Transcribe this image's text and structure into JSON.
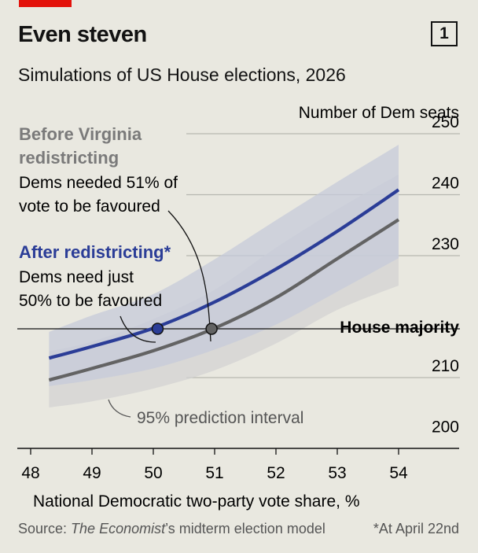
{
  "header": {
    "title": "Even steven",
    "chart_number": "1",
    "subtitle": "Simulations of US House elections, 2026"
  },
  "annotations": {
    "before_title_1": "Before Virginia",
    "before_title_2": "redistricting",
    "before_body_1": "Dems needed 51% of",
    "before_body_2": "vote to be favoured",
    "after_title": "After redistricting*",
    "after_body_1": "Dems need just",
    "after_body_2": "50% to be favoured",
    "interval_label": "95% prediction interval",
    "majority_label": "House majority"
  },
  "footer": {
    "source_prefix": "Source: ",
    "source_publication": "The Economist",
    "source_suffix": "’s midterm election model",
    "footnote": "*At April 22nd"
  },
  "colors": {
    "after_line": "#2b3d97",
    "before_line": "#636363",
    "after_band": "#c6cbda",
    "before_band": "#d3d3d3",
    "gridline": "#b7b7b1",
    "background": "#e9e8e0",
    "before_title_text": "#7a7a7a",
    "after_title_text": "#2b3d97"
  },
  "chart_data": {
    "type": "line",
    "xlabel": "National Democratic two-party vote share, %",
    "ylabel": "Number of Dem seats",
    "xlim": [
      47.8,
      55
    ],
    "ylim": [
      199,
      251
    ],
    "x_ticks": [
      48,
      49,
      50,
      51,
      52,
      53,
      54
    ],
    "y_ticks": [
      200,
      210,
      230,
      240,
      250
    ],
    "majority_line": 218,
    "series": [
      {
        "name": "After redistricting*",
        "x": [
          48.3,
          49,
          50,
          51,
          52,
          53,
          54
        ],
        "y": [
          213.2,
          215.1,
          218.1,
          222.4,
          227.8,
          234,
          240.8
        ],
        "band_lower": [
          208.6,
          209.6,
          211.5,
          214.6,
          218.7,
          224.1,
          229.6
        ],
        "band_upper": [
          217.5,
          220.2,
          223.7,
          229.4,
          235.8,
          242.1,
          248.2
        ]
      },
      {
        "name": "Before Virginia redistricting",
        "x": [
          48.3,
          49,
          50,
          51,
          52,
          53,
          54
        ],
        "y": [
          209.6,
          211.5,
          214.4,
          218.1,
          223.1,
          229.5,
          235.9
        ],
        "band_lower": [
          205.1,
          206.1,
          208.2,
          211.2,
          215.6,
          221.1,
          225.1
        ],
        "band_upper": [
          214.3,
          215.9,
          219.6,
          224.4,
          231.3,
          237.6,
          243.3
        ]
      }
    ],
    "markers": [
      {
        "series": "After redistricting*",
        "x": 50.07,
        "y": 218
      },
      {
        "series": "Before Virginia redistricting",
        "x": 50.95,
        "y": 218
      }
    ],
    "grid": true
  }
}
